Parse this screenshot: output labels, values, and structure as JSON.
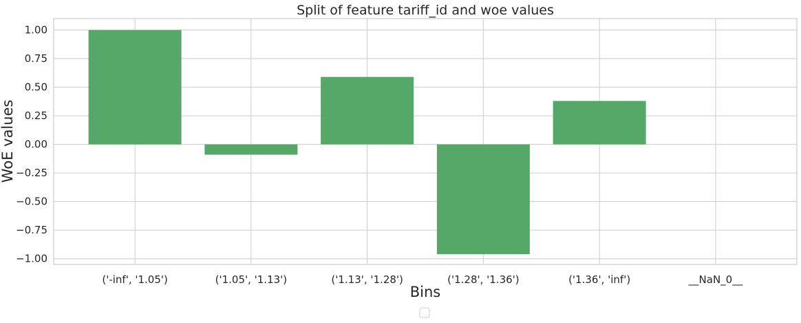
{
  "chart_data": {
    "type": "bar",
    "title": "Split of feature tariff_id and woe values",
    "xlabel": "Bins",
    "ylabel": "WoE values",
    "categories": [
      "('-inf', '1.05')",
      "('1.05', '1.13')",
      "('1.13', '1.28')",
      "('1.28', '1.36')",
      "('1.36', 'inf')",
      "__NaN_0__"
    ],
    "values": [
      1.0,
      -0.09,
      0.59,
      -0.96,
      0.38,
      0.0
    ],
    "ylim": [
      -1.05,
      1.1
    ],
    "yticks": [
      1.0,
      0.75,
      0.5,
      0.25,
      0.0,
      -0.25,
      -0.5,
      -0.75,
      -1.0
    ],
    "ytick_labels": [
      "1.00",
      "0.75",
      "0.50",
      "0.25",
      "0.00",
      "−0.25",
      "−0.50",
      "−0.75",
      "−1.00"
    ],
    "grid": true,
    "legend": "bottom-center, empty",
    "bar_color": "#55a868",
    "grid_color": "#cccccc"
  }
}
